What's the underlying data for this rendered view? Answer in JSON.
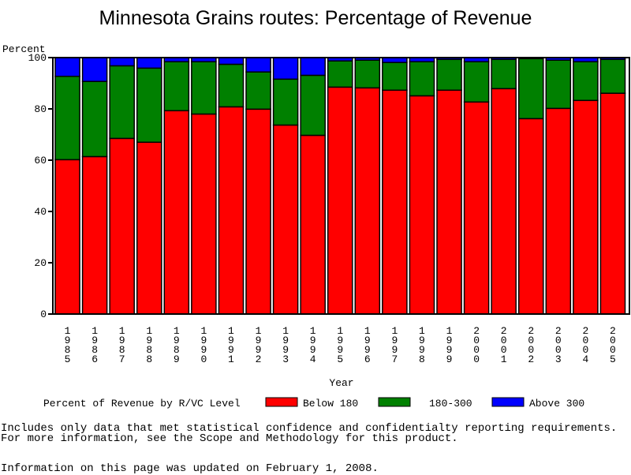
{
  "chart_data": {
    "type": "bar",
    "stacked": true,
    "title": "Minnesota Grains routes: Percentage of Revenue",
    "xlabel": "Year",
    "ylabel": "Percent",
    "ylim": [
      0,
      100
    ],
    "yticks": [
      "0",
      "20",
      "40",
      "60",
      "80",
      "100"
    ],
    "grid": false,
    "legend_title": "Percent of Revenue by R/VC Level",
    "legend_position": "bottom",
    "categories": [
      "1985",
      "1986",
      "1987",
      "1988",
      "1989",
      "1990",
      "1991",
      "1992",
      "1993",
      "1994",
      "1995",
      "1996",
      "1997",
      "1998",
      "1999",
      "2000",
      "2001",
      "2002",
      "2003",
      "2004",
      "2005"
    ],
    "series": [
      {
        "name": "Below 180",
        "color": "#ff0000",
        "values": [
          60.2,
          61.4,
          68.5,
          67.0,
          79.3,
          78.0,
          80.8,
          79.9,
          73.7,
          69.7,
          88.5,
          88.2,
          87.3,
          85.1,
          87.3,
          82.7,
          87.9,
          76.2,
          80.2,
          83.3,
          86.1
        ]
      },
      {
        "name": "180-300",
        "color": "#008000",
        "values": [
          32.5,
          29.3,
          28.3,
          28.9,
          19.1,
          20.4,
          16.6,
          14.5,
          17.9,
          23.4,
          10.2,
          10.8,
          10.8,
          13.3,
          12.0,
          15.7,
          11.4,
          23.4,
          18.8,
          15.1,
          13.2
        ]
      },
      {
        "name": "Above 300",
        "color": "#0000ff",
        "values": [
          7.3,
          9.3,
          3.2,
          4.1,
          1.6,
          1.6,
          2.6,
          5.6,
          8.4,
          6.9,
          1.3,
          1.0,
          1.9,
          1.6,
          0.7,
          1.6,
          0.7,
          0.4,
          1.0,
          1.6,
          0.7
        ]
      }
    ]
  },
  "footnotes": {
    "line1": "Includes only data that met statistical confidence and confidentialty reporting requirements.",
    "line2": "For more information, see the Scope and Methodology for this product.",
    "line3": "Information on this page was updated on February 1, 2008."
  }
}
